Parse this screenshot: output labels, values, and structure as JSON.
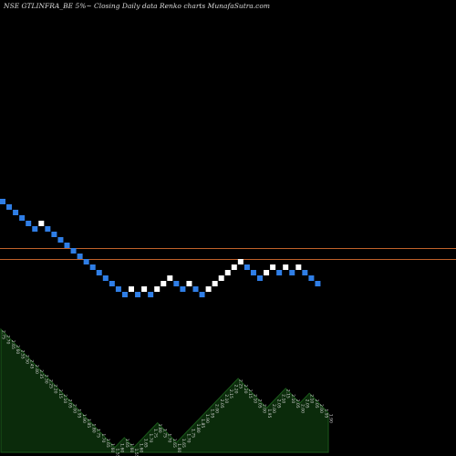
{
  "chart_data": {
    "type": "renko",
    "title": "NSE GTLINFRA_BE 5%~  Closing Daily data  Renko  charts MunafaSutra.com",
    "colors": {
      "background": "#000000",
      "up_brick": "#ffffff",
      "down_brick": "#2f7ee6",
      "ref_line": "#c0622b",
      "area_fill": "#0b2b0b",
      "area_stroke": "#1b5a1b",
      "area_label": "#cfcfcf"
    },
    "reference_lines": [
      1.95,
      1.85
    ],
    "bricks": [
      {
        "dir": "down",
        "value": 2.4
      },
      {
        "dir": "down",
        "value": 2.35
      },
      {
        "dir": "down",
        "value": 2.3
      },
      {
        "dir": "down",
        "value": 2.25
      },
      {
        "dir": "down",
        "value": 2.2
      },
      {
        "dir": "down",
        "value": 2.15
      },
      {
        "dir": "up",
        "value": 2.2
      },
      {
        "dir": "down",
        "value": 2.15
      },
      {
        "dir": "down",
        "value": 2.1
      },
      {
        "dir": "down",
        "value": 2.05
      },
      {
        "dir": "down",
        "value": 2.0
      },
      {
        "dir": "down",
        "value": 1.95
      },
      {
        "dir": "down",
        "value": 1.9
      },
      {
        "dir": "down",
        "value": 1.85
      },
      {
        "dir": "down",
        "value": 1.8
      },
      {
        "dir": "down",
        "value": 1.75
      },
      {
        "dir": "down",
        "value": 1.7
      },
      {
        "dir": "down",
        "value": 1.65
      },
      {
        "dir": "down",
        "value": 1.6
      },
      {
        "dir": "down",
        "value": 1.55
      },
      {
        "dir": "up",
        "value": 1.6
      },
      {
        "dir": "down",
        "value": 1.55
      },
      {
        "dir": "up",
        "value": 1.6
      },
      {
        "dir": "down",
        "value": 1.55
      },
      {
        "dir": "up",
        "value": 1.6
      },
      {
        "dir": "up",
        "value": 1.65
      },
      {
        "dir": "up",
        "value": 1.7
      },
      {
        "dir": "down",
        "value": 1.65
      },
      {
        "dir": "down",
        "value": 1.6
      },
      {
        "dir": "up",
        "value": 1.65
      },
      {
        "dir": "down",
        "value": 1.6
      },
      {
        "dir": "down",
        "value": 1.55
      },
      {
        "dir": "up",
        "value": 1.6
      },
      {
        "dir": "up",
        "value": 1.65
      },
      {
        "dir": "up",
        "value": 1.7
      },
      {
        "dir": "up",
        "value": 1.75
      },
      {
        "dir": "up",
        "value": 1.8
      },
      {
        "dir": "up",
        "value": 1.85
      },
      {
        "dir": "down",
        "value": 1.8
      },
      {
        "dir": "down",
        "value": 1.75
      },
      {
        "dir": "down",
        "value": 1.7
      },
      {
        "dir": "up",
        "value": 1.75
      },
      {
        "dir": "up",
        "value": 1.8
      },
      {
        "dir": "down",
        "value": 1.75
      },
      {
        "dir": "up",
        "value": 1.8
      },
      {
        "dir": "down",
        "value": 1.75
      },
      {
        "dir": "up",
        "value": 1.8
      },
      {
        "dir": "down",
        "value": 1.75
      },
      {
        "dir": "down",
        "value": 1.7
      },
      {
        "dir": "down",
        "value": 1.65
      }
    ],
    "area_labels": [
      "2.75",
      "2.70",
      "2.65",
      "2.60",
      "2.55",
      "2.50",
      "2.45",
      "2.40",
      "2.35",
      "2.30",
      "2.25",
      "2.20",
      "2.15",
      "2.10",
      "2.05",
      "2.00",
      "1.95",
      "1.90",
      "1.85",
      "1.80",
      "1.75",
      "1.70",
      "1.65",
      "1.60",
      "1.55",
      "1.60",
      "1.65",
      "1.60",
      "1.55",
      "1.60",
      "1.65",
      "1.70",
      "1.75",
      "1.80",
      "1.75",
      "1.70",
      "1.65",
      "1.60",
      "1.65",
      "1.70",
      "1.75",
      "1.80",
      "1.85",
      "1.90",
      "1.95",
      "2.00",
      "2.05",
      "2.10",
      "2.15",
      "2.20",
      "2.25",
      "2.20",
      "2.15",
      "2.10",
      "2.05",
      "2.00",
      "1.95",
      "2.00",
      "2.05",
      "2.10",
      "2.15",
      "2.10",
      "2.05",
      "2.00",
      "2.05",
      "2.10",
      "2.05",
      "2.00",
      "1.95",
      "1.90"
    ],
    "area_values": [
      2.75,
      2.7,
      2.65,
      2.6,
      2.55,
      2.5,
      2.45,
      2.4,
      2.35,
      2.3,
      2.25,
      2.2,
      2.15,
      2.1,
      2.05,
      2.0,
      1.95,
      1.9,
      1.85,
      1.8,
      1.75,
      1.7,
      1.65,
      1.6,
      1.55,
      1.6,
      1.65,
      1.6,
      1.55,
      1.6,
      1.65,
      1.7,
      1.75,
      1.8,
      1.75,
      1.7,
      1.65,
      1.6,
      1.65,
      1.7,
      1.75,
      1.8,
      1.85,
      1.9,
      1.95,
      2.0,
      2.05,
      2.1,
      2.15,
      2.2,
      2.25,
      2.2,
      2.15,
      2.1,
      2.05,
      2.0,
      1.95,
      2.0,
      2.05,
      2.1,
      2.15,
      2.1,
      2.05,
      2.0,
      2.05,
      2.1,
      2.05,
      2.0,
      1.95,
      1.9
    ]
  }
}
